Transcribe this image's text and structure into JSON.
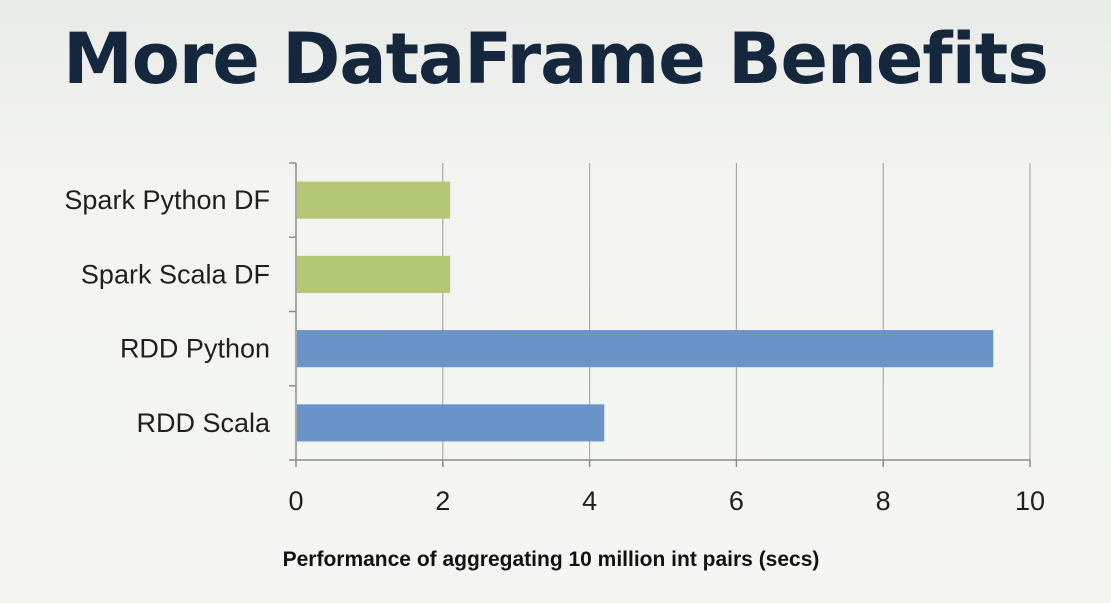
{
  "slide": {
    "title": "More DataFrame Benefits"
  },
  "chart_data": {
    "type": "bar",
    "orientation": "horizontal",
    "categories": [
      "Spark Python DF",
      "Spark Scala DF",
      "RDD Python",
      "RDD Scala"
    ],
    "values": [
      2.1,
      2.1,
      9.5,
      4.2
    ],
    "bar_colors": [
      "#b3c775",
      "#b3c775",
      "#6a94c8",
      "#6a94c8"
    ],
    "xlabel": "Performance of aggregating 10 million int pairs (secs)",
    "xlim": [
      0,
      10
    ],
    "xticks": [
      0,
      2,
      4,
      6,
      8,
      10
    ],
    "grid": true,
    "legend": "none"
  }
}
